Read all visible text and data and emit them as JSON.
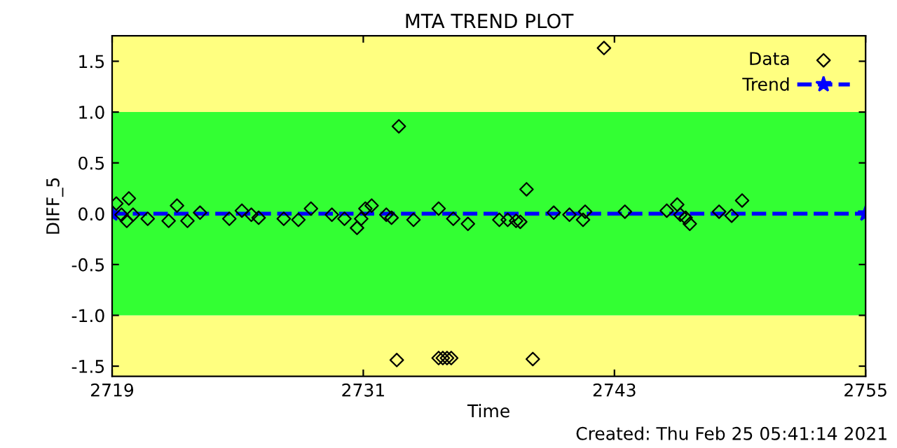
{
  "chart_data": {
    "type": "scatter",
    "title": "MTA TREND PLOT",
    "xlabel": "Time",
    "ylabel": "DIFF_5",
    "annotations": [
      "Created: Thu Feb 25 05:41:14 2021"
    ],
    "xlim": [
      2719,
      2755
    ],
    "xticks": [
      2719,
      2731,
      2743,
      2755
    ],
    "ylim": [
      -1.6,
      1.75
    ],
    "yticks": [
      -1.5,
      {
        "value": -1,
        "label": "-1.0"
      },
      -0.5,
      {
        "value": 0,
        "label": "0.0"
      },
      0.5,
      {
        "value": 1,
        "label": "1.0"
      },
      1.5
    ],
    "bands": [
      {
        "axis": "y",
        "from": 1.0,
        "to": 1.75,
        "color": "#ffff80"
      },
      {
        "axis": "y",
        "from": -1.6,
        "to": -1.0,
        "color": "#ffff80"
      },
      {
        "axis": "y",
        "from": -1.0,
        "to": 1.0,
        "color": "#33ff33"
      }
    ],
    "legend": "top right",
    "grid": false,
    "series": [
      {
        "name": "Data",
        "color": "#000000",
        "marker": "diamond",
        "x": [
          2719.2,
          2719.45,
          2719.8,
          2719.7,
          2720.0,
          2720.7,
          2721.7,
          2722.1,
          2722.6,
          2723.2,
          2724.6,
          2725.2,
          2725.65,
          2726.0,
          2727.2,
          2727.9,
          2728.5,
          2729.5,
          2730.1,
          2730.7,
          2730.9,
          2731.1,
          2731.4,
          2732.1,
          2732.35,
          2732.7,
          2732.6,
          2733.4,
          2734.6,
          2734.6,
          2734.8,
          2735.0,
          2735.2,
          2735.3,
          2736.0,
          2737.5,
          2737.9,
          2738.3,
          2738.5,
          2738.8,
          2739.1,
          2740.1,
          2740.85,
          2741.5,
          2741.6,
          2742.5,
          2743.5,
          2745.5,
          2746.0,
          2746.15,
          2746.4,
          2746.6,
          2748.0,
          2748.6,
          2749.1
        ],
        "values": [
          0.1,
          -0.01,
          0.15,
          -0.07,
          -0.01,
          -0.05,
          -0.07,
          0.08,
          -0.07,
          0.01,
          -0.05,
          0.03,
          -0.01,
          -0.04,
          -0.05,
          -0.06,
          0.05,
          -0.01,
          -0.05,
          -0.14,
          -0.05,
          0.05,
          0.08,
          -0.01,
          -0.04,
          0.86,
          -1.44,
          -0.06,
          0.05,
          -1.42,
          -1.42,
          -1.42,
          -1.42,
          -0.05,
          -0.1,
          -0.06,
          -0.06,
          -0.07,
          -0.08,
          0.24,
          -1.43,
          0.01,
          -0.01,
          -0.06,
          0.02,
          1.63,
          0.02,
          0.03,
          0.09,
          -0.01,
          -0.04,
          -0.1,
          0.02,
          -0.02,
          0.13
        ]
      },
      {
        "name": "Trend",
        "type": "line",
        "color": "#0000ff",
        "marker": "star",
        "line_style": "dashed",
        "x": [
          2719,
          2755
        ],
        "values": [
          0.0,
          0.0
        ]
      }
    ]
  }
}
